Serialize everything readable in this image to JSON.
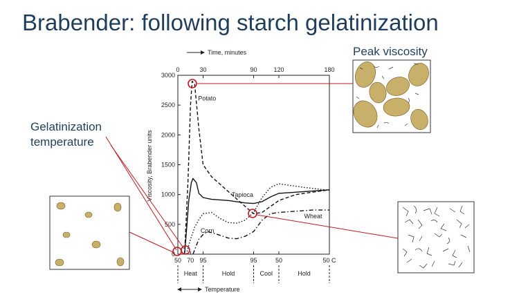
{
  "slide": {
    "title": "Brabender: following starch gelatinization",
    "callout_peak": "Peak viscosity",
    "callout_gel_line1": "Gelatinization",
    "callout_gel_line2": "temperature"
  },
  "colors": {
    "title": "#1f3e5c",
    "callout_line": "#c0191f",
    "granule": "#c9b06a",
    "granule_stroke": "#6e5a22"
  },
  "chart_data": {
    "type": "line",
    "xlabel_top": "Time, minutes",
    "xlabel_bottom": "Temperature",
    "ylabel": "Viscosity, Brabender units",
    "time_ticks": [
      "0",
      "30",
      "90",
      "120",
      "180"
    ],
    "time_tick_values": [
      0,
      30,
      90,
      120,
      180
    ],
    "xlim": [
      0,
      180
    ],
    "ylim": [
      0,
      3000
    ],
    "y_ticks": [
      "3000",
      "2500",
      "2000",
      "1500",
      "1000",
      "500",
      "0"
    ],
    "y_tick_values": [
      3000,
      2500,
      2000,
      1500,
      1000,
      500,
      0
    ],
    "temp_ticks": [
      {
        "label": "50",
        "t": 0
      },
      {
        "label": "70",
        "t": 15
      },
      {
        "label": "95",
        "t": 30
      },
      {
        "label": "95",
        "t": 90
      },
      {
        "label": "50",
        "t": 120
      },
      {
        "label": "50 C",
        "t": 180
      }
    ],
    "phases": [
      {
        "label": "Heat",
        "t_start": 0,
        "t_end": 30
      },
      {
        "label": "Hold",
        "t_start": 30,
        "t_end": 90
      },
      {
        "label": "Cool",
        "t_start": 90,
        "t_end": 120
      },
      {
        "label": "Hold",
        "t_start": 120,
        "t_end": 180
      }
    ],
    "phase_dividers": [
      0,
      30,
      90,
      120,
      180
    ],
    "series": [
      {
        "name": "Potato",
        "style": "dashed",
        "x": [
          8,
          12,
          15,
          17,
          20,
          25,
          30,
          40,
          60,
          80,
          90,
          100,
          110,
          120,
          140,
          160,
          180
        ],
        "y": [
          0,
          1200,
          2500,
          2900,
          2850,
          2100,
          1500,
          1300,
          1050,
          800,
          680,
          700,
          800,
          900,
          1000,
          1040,
          1080
        ]
      },
      {
        "name": "Tapioca",
        "style": "solid",
        "x": [
          8,
          10,
          13,
          16,
          18,
          22,
          25,
          30,
          40,
          60,
          80,
          90,
          100,
          110,
          120,
          150,
          180
        ],
        "y": [
          0,
          350,
          900,
          1200,
          1270,
          1200,
          1020,
          950,
          920,
          900,
          860,
          850,
          880,
          960,
          1020,
          1050,
          1080
        ]
      },
      {
        "name": "Corn",
        "style": "dotted",
        "x": [
          10,
          15,
          20,
          25,
          30,
          40,
          50,
          60,
          70,
          80,
          90,
          100,
          110,
          120,
          150,
          180
        ],
        "y": [
          0,
          250,
          450,
          580,
          680,
          700,
          600,
          530,
          520,
          570,
          700,
          950,
          1120,
          1180,
          1120,
          1070
        ]
      },
      {
        "name": "Wheat",
        "style": "dashdot",
        "x": [
          18,
          22,
          25,
          30,
          35,
          45,
          60,
          70,
          80,
          90,
          100,
          110,
          120,
          140,
          160,
          180
        ],
        "y": [
          0,
          150,
          250,
          330,
          380,
          340,
          270,
          260,
          300,
          380,
          570,
          680,
          700,
          720,
          740,
          740
        ]
      }
    ],
    "series_labels": [
      {
        "text": "Potato",
        "t": 24,
        "v": 2580
      },
      {
        "text": "Tapioca",
        "t": 64,
        "v": 960
      },
      {
        "text": "Corn",
        "t": 27,
        "v": 360
      },
      {
        "text": "Wheat",
        "t": 150,
        "v": 600
      }
    ],
    "grid": false
  }
}
